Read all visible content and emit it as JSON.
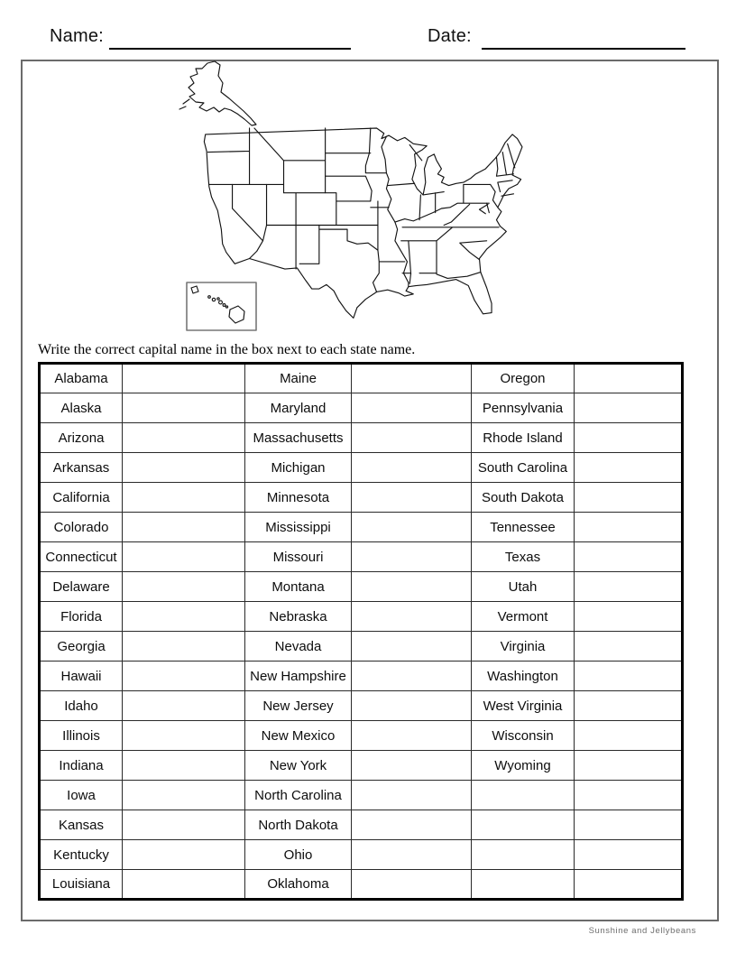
{
  "header": {
    "name_label": "Name:",
    "date_label": "Date:"
  },
  "map": {
    "description": "blank-us-states-outline-map",
    "regions": [
      "contiguous-united-states",
      "alaska",
      "hawaii-inset"
    ]
  },
  "instruction": "Write the correct capital name in the box next to each state name.",
  "table": {
    "row_count": 18,
    "answer_boxes_blank": true,
    "groups": [
      {
        "states": [
          "Alabama",
          "Alaska",
          "Arizona",
          "Arkansas",
          "California",
          "Colorado",
          "Connecticut",
          "Delaware",
          "Florida",
          "Georgia",
          "Hawaii",
          "Idaho",
          "Illinois",
          "Indiana",
          "Iowa",
          "Kansas",
          "Kentucky",
          "Louisiana"
        ]
      },
      {
        "states": [
          "Maine",
          "Maryland",
          "Massachusetts",
          "Michigan",
          "Minnesota",
          "Mississippi",
          "Missouri",
          "Montana",
          "Nebraska",
          "Nevada",
          "New Hampshire",
          "New Jersey",
          "New Mexico",
          "New York",
          "North Carolina",
          "North Dakota",
          "Ohio",
          "Oklahoma"
        ]
      },
      {
        "states": [
          "Oregon",
          "Pennsylvania",
          "Rhode Island",
          "South Carolina",
          "South Dakota",
          "Tennessee",
          "Texas",
          "Utah",
          "Vermont",
          "Virginia",
          "Washington",
          "West Virginia",
          "Wisconsin",
          "Wyoming",
          "",
          "",
          "",
          ""
        ]
      }
    ]
  },
  "footer": {
    "credit": "Sunshine and Jellybeans"
  },
  "colors": {
    "ink": "#000000",
    "frame_border": "#6b6b6b",
    "footer_text": "#6e6e6e"
  }
}
